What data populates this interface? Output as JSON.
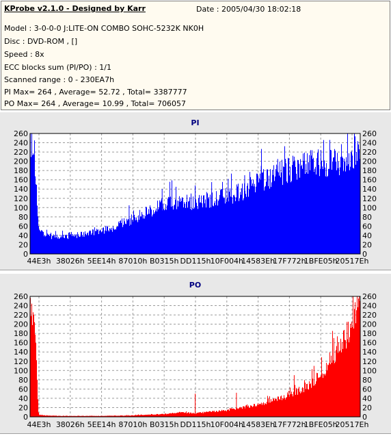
{
  "info": {
    "title": "KProbe v2.1.0 - Designed by Karr",
    "date": "Date : 2005/04/30 18:02:18",
    "lines": [
      "Model : 3-0-0-0 J:LITE-ON COMBO SOHC-5232K NK0H",
      "Disc : DVD-ROM ,  []",
      "Speed : 8x",
      "ECC blocks sum (PI/PO) : 1/1",
      "Scanned range : 0 - 230EA7h",
      "PI Max= 264 , Average= 52.72 , Total= 3387777",
      "PO Max= 264 , Average= 10.99 , Total= 706057"
    ]
  },
  "chart_data": [
    {
      "type": "area",
      "title": "PI",
      "color": "#0000ff",
      "ylim": [
        0,
        260
      ],
      "yticks": [
        0,
        20,
        40,
        60,
        80,
        100,
        120,
        140,
        160,
        180,
        200,
        220,
        240,
        260
      ],
      "xlim_hex": [
        "0",
        "230EA7"
      ],
      "xtick_labels": [
        "44E3h",
        "38026h",
        "5EE14h",
        "87010h",
        "B0315h",
        "DD115h",
        "10F004h",
        "14583Eh",
        "17F772h",
        "1BFE05h",
        "20517Eh"
      ],
      "grid": true,
      "x": [
        0.0,
        0.012,
        0.025,
        0.05,
        0.08,
        0.12,
        0.16,
        0.2,
        0.25,
        0.3,
        0.35,
        0.4,
        0.45,
        0.5,
        0.55,
        0.6,
        0.65,
        0.7,
        0.75,
        0.8,
        0.85,
        0.9,
        0.95,
        0.975,
        0.99,
        1.0
      ],
      "values": [
        245,
        240,
        55,
        42,
        38,
        40,
        45,
        50,
        60,
        75,
        95,
        110,
        120,
        115,
        125,
        130,
        145,
        165,
        180,
        195,
        205,
        208,
        210,
        215,
        245,
        255
      ],
      "spikes": [
        [
          0.3,
          105
        ],
        [
          0.4,
          140
        ],
        [
          0.5,
          148
        ],
        [
          0.55,
          155
        ],
        [
          0.6,
          162
        ],
        [
          0.65,
          170
        ],
        [
          0.7,
          190
        ],
        [
          0.75,
          205
        ],
        [
          0.8,
          210
        ],
        [
          0.85,
          215
        ]
      ]
    },
    {
      "type": "area",
      "title": "PO",
      "color": "#ff0000",
      "ylim": [
        0,
        260
      ],
      "yticks": [
        0,
        20,
        40,
        60,
        80,
        100,
        120,
        140,
        160,
        180,
        200,
        220,
        240,
        260
      ],
      "xlim_hex": [
        "0",
        "230EA7"
      ],
      "xtick_labels": [
        "44E3h",
        "38026h",
        "5EE14h",
        "87010h",
        "B0315h",
        "DD115h",
        "10F004h",
        "14583Eh",
        "17F772h",
        "1BFE05h",
        "20517Eh"
      ],
      "grid": true,
      "x": [
        0.0,
        0.012,
        0.025,
        0.05,
        0.1,
        0.2,
        0.3,
        0.4,
        0.45,
        0.5,
        0.55,
        0.6,
        0.65,
        0.7,
        0.75,
        0.8,
        0.85,
        0.88,
        0.9,
        0.93,
        0.95,
        0.97,
        0.985,
        1.0
      ],
      "values": [
        235,
        235,
        5,
        3,
        2,
        2,
        3,
        6,
        10,
        8,
        12,
        15,
        22,
        30,
        40,
        55,
        75,
        95,
        120,
        150,
        175,
        200,
        230,
        255
      ],
      "spikes": [
        [
          0.5,
          50
        ],
        [
          0.625,
          52
        ],
        [
          0.8,
          90
        ],
        [
          0.86,
          110
        ],
        [
          0.92,
          170
        ],
        [
          0.96,
          205
        ]
      ]
    }
  ]
}
